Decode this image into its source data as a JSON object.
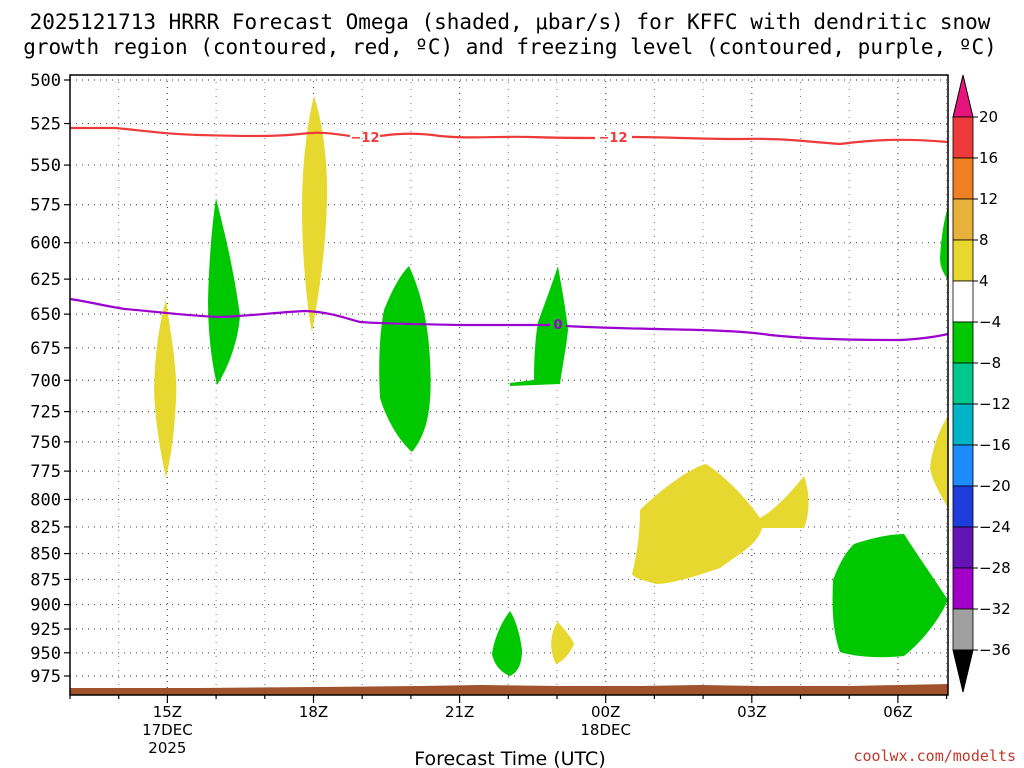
{
  "chart_data": {
    "type": "contour",
    "title_line1": "2025121713 HRRR Forecast Omega (shaded, μbar/s) for KFFC with dendritic snow",
    "title_line2": "growth region (contoured, red, ºC) and freezing level (contoured, purple, ºC)",
    "xlabel": "Forecast Time (UTC)",
    "credit": "coolwx.com/modelts",
    "y_axis": {
      "ticks": [
        500,
        525,
        550,
        575,
        600,
        625,
        650,
        675,
        700,
        725,
        750,
        775,
        800,
        825,
        850,
        875,
        900,
        925,
        950,
        975
      ],
      "inverted": true,
      "scale": "log-pressure"
    },
    "x_axis": {
      "ticks": [
        {
          "label": "15Z",
          "sub1": "17DEC",
          "sub2": "2025"
        },
        {
          "label": "18Z",
          "sub1": "",
          "sub2": ""
        },
        {
          "label": "21Z",
          "sub1": "",
          "sub2": ""
        },
        {
          "label": "00Z",
          "sub1": "18DEC",
          "sub2": ""
        },
        {
          "label": "03Z",
          "sub1": "",
          "sub2": ""
        },
        {
          "label": "06Z",
          "sub1": "",
          "sub2": ""
        }
      ]
    },
    "colorbar": {
      "labels": [
        "20",
        "16",
        "12",
        "8",
        "4",
        "−4",
        "−8",
        "−12",
        "−16",
        "−20",
        "−24",
        "−28",
        "−32",
        "−36"
      ],
      "colors": [
        "#ee3a3a",
        "#ee7f22",
        "#e8b23a",
        "#e8d82e",
        "#ffffff",
        "#00c800",
        "#00c88c",
        "#00b4c8",
        "#1e8cff",
        "#1e3cdc",
        "#6414b4",
        "#a000c8",
        "#a0a0a0"
      ],
      "top_arrow_color": "#e6147d",
      "bottom_arrow_color": "#000000"
    },
    "contours": [
      {
        "name": "dendritic snow growth region",
        "value_label": "−12",
        "color": "#ee3a3a"
      },
      {
        "name": "freezing level",
        "value_label": "0",
        "color": "#9b00d0"
      }
    ]
  }
}
